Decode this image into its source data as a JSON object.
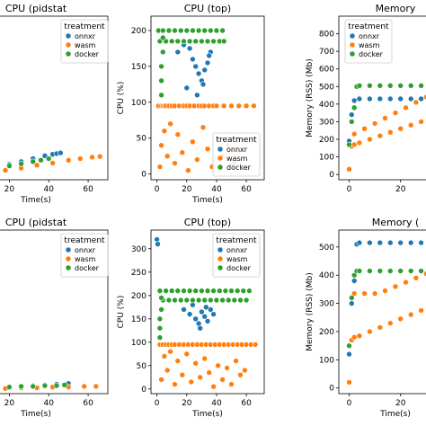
{
  "figure": {
    "width": 474,
    "height": 474
  },
  "chart_data": [
    {
      "id": "r1c1",
      "type": "scatter",
      "title": "CPU (pidstat",
      "xlabel": "Time(s)",
      "ylabel": "",
      "xlim": [
        -3,
        70
      ],
      "ylim": [
        -5,
        220
      ],
      "xticks": [
        20,
        40,
        60
      ],
      "yticks": [],
      "legend": {
        "title": "treatment",
        "position": "top-right",
        "entries": [
          "onnxr",
          "wasm",
          "docker"
        ]
      },
      "series": [
        {
          "name": "onnxr",
          "color": "#1f77b4",
          "x": [
            2,
            8,
            14,
            20,
            26,
            32,
            38,
            42,
            44,
            46
          ],
          "y": [
            4,
            8,
            12,
            16,
            20,
            24,
            28,
            30,
            31,
            32
          ]
        },
        {
          "name": "wasm",
          "color": "#ff7f0e",
          "x": [
            2,
            10,
            18,
            26,
            34,
            42,
            50,
            56,
            62,
            66
          ],
          "y": [
            2,
            5,
            8,
            11,
            15,
            18,
            22,
            24,
            26,
            27
          ]
        },
        {
          "name": "docker",
          "color": "#2ca02c",
          "x": [
            2,
            8,
            14,
            20,
            26,
            32,
            36,
            40
          ],
          "y": [
            3,
            6,
            10,
            14,
            17,
            20,
            22,
            24
          ]
        }
      ]
    },
    {
      "id": "r1c2",
      "type": "scatter",
      "title": "CPU (top)",
      "xlabel": "Time(s)",
      "ylabel": "CPU (%)",
      "xlim": [
        -4,
        72
      ],
      "ylim": [
        -8,
        220
      ],
      "xticks": [
        0,
        20,
        40,
        60
      ],
      "yticks": [
        0,
        50,
        100,
        150,
        200
      ],
      "legend": {
        "title": "treatment",
        "position": "bottom-right",
        "entries": [
          "onnxr",
          "wasm",
          "docker"
        ]
      },
      "series": [
        {
          "name": "onnxr",
          "color": "#1f77b4",
          "x": [
            10,
            14,
            18,
            22,
            24,
            26,
            28,
            30,
            32,
            34,
            36,
            20,
            27,
            31,
            35
          ],
          "y": [
            185,
            170,
            180,
            175,
            160,
            150,
            140,
            130,
            145,
            155,
            170,
            120,
            110,
            125,
            165
          ]
        },
        {
          "name": "wasm",
          "color": "#ff7f0e",
          "x": [
            1,
            3,
            4,
            5,
            6,
            8,
            10,
            12,
            15,
            18,
            20,
            22,
            25,
            28,
            30,
            32,
            35,
            38,
            40,
            45,
            50,
            55,
            60,
            65,
            2,
            3,
            5,
            7,
            9,
            12,
            14,
            17,
            21,
            24,
            27,
            31,
            34,
            37,
            41,
            44,
            48,
            52
          ],
          "y": [
            95,
            95,
            95,
            95,
            95,
            95,
            95,
            95,
            95,
            95,
            95,
            95,
            95,
            95,
            95,
            95,
            95,
            95,
            95,
            95,
            95,
            95,
            95,
            95,
            10,
            40,
            60,
            25,
            70,
            15,
            55,
            30,
            5,
            45,
            20,
            65,
            35,
            10,
            50,
            25,
            40,
            15
          ]
        },
        {
          "name": "docker",
          "color": "#2ca02c",
          "x": [
            1,
            4,
            8,
            12,
            16,
            20,
            24,
            28,
            32,
            36,
            40,
            44,
            2,
            6,
            10,
            14,
            18,
            22,
            26,
            30,
            34,
            38,
            42,
            45,
            3,
            3,
            3,
            4,
            4
          ],
          "y": [
            200,
            200,
            200,
            200,
            200,
            200,
            200,
            200,
            200,
            200,
            200,
            200,
            185,
            185,
            185,
            185,
            185,
            185,
            185,
            185,
            185,
            185,
            185,
            185,
            110,
            130,
            150,
            170,
            190
          ]
        }
      ]
    },
    {
      "id": "r1c3",
      "type": "scatter",
      "title": "Memory",
      "xlabel": "",
      "ylabel": "Memory (RSS) (Mb)",
      "xlim": [
        -4,
        40
      ],
      "ylim": [
        -30,
        900
      ],
      "xticks": [
        0,
        20
      ],
      "yticks": [
        0,
        100,
        200,
        300,
        400,
        500,
        600,
        700,
        800
      ],
      "legend": {
        "title": "treatment",
        "position": "top-right",
        "entries": [
          "onnxr",
          "wasm",
          "docker"
        ]
      },
      "series": [
        {
          "name": "onnxr",
          "color": "#1f77b4",
          "x": [
            0,
            1,
            2,
            4,
            8,
            12,
            16,
            20,
            24,
            28,
            32,
            36
          ],
          "y": [
            190,
            340,
            420,
            430,
            430,
            430,
            430,
            430,
            430,
            430,
            430,
            430
          ]
        },
        {
          "name": "wasm",
          "color": "#ff7f0e",
          "x": [
            0,
            1,
            2,
            4,
            8,
            12,
            16,
            20,
            24,
            28,
            32,
            36,
            2,
            6,
            10,
            14,
            18,
            22,
            26,
            30,
            34
          ],
          "y": [
            30,
            160,
            170,
            180,
            200,
            220,
            240,
            260,
            280,
            300,
            320,
            340,
            230,
            260,
            290,
            320,
            350,
            380,
            410,
            440,
            470
          ]
        },
        {
          "name": "docker",
          "color": "#2ca02c",
          "x": [
            0,
            1,
            2,
            3,
            4,
            8,
            12,
            16,
            20,
            24,
            28,
            32,
            36
          ],
          "y": [
            170,
            300,
            380,
            500,
            505,
            505,
            505,
            505,
            505,
            505,
            505,
            505,
            505
          ]
        }
      ]
    },
    {
      "id": "r2c1",
      "type": "scatter",
      "title": "CPU (pidstat",
      "xlabel": "Time(s)",
      "ylabel": "",
      "xlim": [
        -3,
        70
      ],
      "ylim": [
        -5,
        220
      ],
      "xticks": [
        20,
        40,
        60
      ],
      "yticks": [],
      "legend": {
        "title": "treatment",
        "position": "top-right",
        "entries": [
          "onnxr",
          "wasm",
          "docker"
        ]
      },
      "series": [
        {
          "name": "onnxr",
          "color": "#1f77b4",
          "x": [
            2,
            8,
            14,
            20,
            26,
            32,
            38,
            44,
            50
          ],
          "y": [
            1,
            2,
            3,
            4,
            5,
            6,
            7,
            8,
            9
          ]
        },
        {
          "name": "wasm",
          "color": "#ff7f0e",
          "x": [
            2,
            10,
            18,
            26,
            34,
            42,
            50,
            58,
            64
          ],
          "y": [
            1,
            2,
            2,
            3,
            3,
            4,
            4,
            5,
            5
          ]
        },
        {
          "name": "docker",
          "color": "#2ca02c",
          "x": [
            2,
            8,
            14,
            20,
            26,
            32,
            38,
            44,
            48
          ],
          "y": [
            1,
            2,
            3,
            4,
            5,
            5,
            6,
            6,
            7
          ]
        }
      ]
    },
    {
      "id": "r2c2",
      "type": "scatter",
      "title": "CPU (top)",
      "xlabel": "Time(s)",
      "ylabel": "CPU (%)",
      "xlim": [
        -4,
        72
      ],
      "ylim": [
        -10,
        340
      ],
      "xticks": [
        0,
        20,
        40,
        60
      ],
      "yticks": [
        0,
        50,
        100,
        150,
        200,
        250,
        300
      ],
      "legend": {
        "title": "treatment",
        "position": "top-right",
        "entries": [
          "onnxr",
          "wasm",
          "docker"
        ]
      },
      "series": [
        {
          "name": "onnxr",
          "color": "#1f77b4",
          "x": [
            0,
            0.5,
            18,
            22,
            26,
            28,
            30,
            32,
            34,
            36,
            38,
            24,
            29,
            33
          ],
          "y": [
            320,
            310,
            170,
            160,
            150,
            140,
            165,
            155,
            145,
            170,
            160,
            180,
            130,
            175
          ]
        },
        {
          "name": "wasm",
          "color": "#ff7f0e",
          "x": [
            2,
            4,
            6,
            8,
            10,
            12,
            15,
            18,
            21,
            24,
            27,
            30,
            33,
            36,
            39,
            42,
            45,
            48,
            51,
            54,
            57,
            60,
            63,
            66,
            3,
            5,
            7,
            9,
            12,
            14,
            17,
            20,
            23,
            26,
            29,
            32,
            35,
            38,
            41,
            44,
            47,
            50,
            53,
            56,
            59
          ],
          "y": [
            95,
            95,
            95,
            95,
            95,
            95,
            95,
            95,
            95,
            95,
            95,
            95,
            95,
            95,
            95,
            95,
            95,
            95,
            95,
            95,
            95,
            95,
            95,
            95,
            20,
            70,
            40,
            80,
            10,
            60,
            30,
            75,
            15,
            55,
            25,
            65,
            35,
            5,
            50,
            20,
            45,
            10,
            60,
            30,
            40
          ]
        },
        {
          "name": "docker",
          "color": "#2ca02c",
          "x": [
            2,
            6,
            10,
            14,
            18,
            22,
            26,
            30,
            34,
            38,
            42,
            46,
            50,
            54,
            58,
            62,
            4,
            8,
            12,
            16,
            20,
            24,
            28,
            32,
            36,
            40,
            44,
            48,
            52,
            56,
            60,
            2,
            2,
            2,
            3,
            3
          ],
          "y": [
            210,
            210,
            210,
            210,
            210,
            210,
            210,
            210,
            210,
            210,
            210,
            210,
            210,
            210,
            210,
            210,
            190,
            190,
            190,
            190,
            190,
            190,
            190,
            190,
            190,
            190,
            190,
            190,
            190,
            190,
            190,
            110,
            130,
            150,
            170,
            195
          ]
        }
      ]
    },
    {
      "id": "r2c3",
      "type": "scatter",
      "title": "Memory (",
      "xlabel": "Time(s)",
      "ylabel": "Memory (RSS) (Mb)",
      "xlim": [
        -4,
        40
      ],
      "ylim": [
        -20,
        560
      ],
      "xticks": [
        0,
        20
      ],
      "yticks": [
        0,
        100,
        200,
        300,
        400,
        500
      ],
      "legend": {
        "title": "",
        "position": "none",
        "entries": []
      },
      "series": [
        {
          "name": "onnxr",
          "color": "#1f77b4",
          "x": [
            0,
            1,
            2,
            3,
            4,
            8,
            12,
            16,
            20,
            24,
            28,
            32,
            36
          ],
          "y": [
            120,
            300,
            380,
            510,
            515,
            515,
            515,
            515,
            515,
            515,
            515,
            515,
            515
          ]
        },
        {
          "name": "wasm",
          "color": "#ff7f0e",
          "x": [
            0,
            1,
            2,
            4,
            8,
            12,
            16,
            20,
            24,
            28,
            32,
            36,
            2,
            6,
            10,
            14,
            18,
            22,
            26,
            30,
            34
          ],
          "y": [
            20,
            170,
            180,
            185,
            200,
            215,
            230,
            245,
            260,
            275,
            290,
            305,
            335,
            335,
            335,
            345,
            360,
            375,
            390,
            405,
            420
          ]
        },
        {
          "name": "docker",
          "color": "#2ca02c",
          "x": [
            0,
            1,
            2,
            3,
            4,
            8,
            12,
            16,
            20,
            24,
            28,
            32,
            36
          ],
          "y": [
            150,
            320,
            400,
            415,
            415,
            415,
            415,
            415,
            415,
            415,
            415,
            415,
            415
          ]
        }
      ]
    }
  ]
}
